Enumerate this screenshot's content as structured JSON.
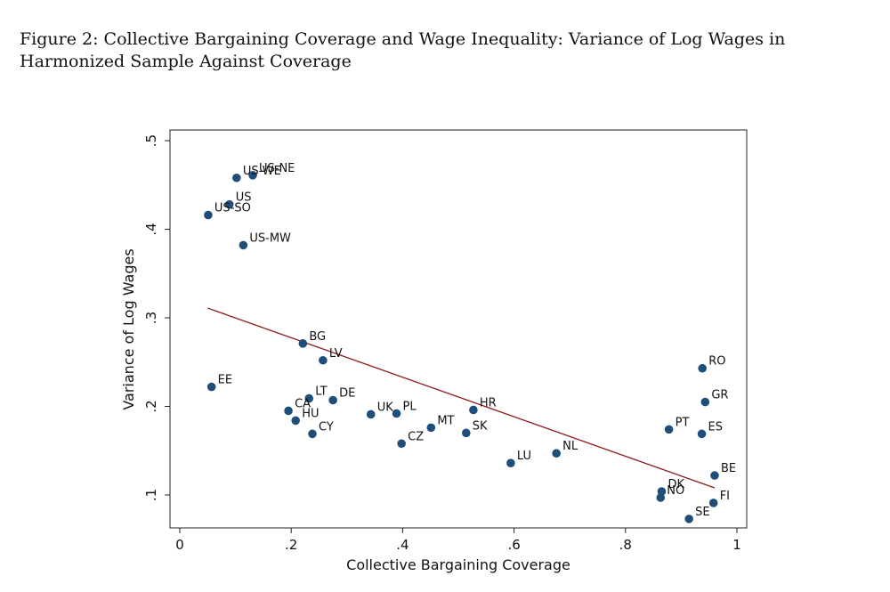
{
  "figure": {
    "caption": "Figure 2: Collective Bargaining Coverage and Wage Inequality: Variance of Log Wages in Harmonized Sample Against Coverage"
  },
  "chart_data": {
    "type": "scatter",
    "title": "Figure 2: Collective Bargaining Coverage and Wage Inequality: Variance of Log Wages in Harmonized Sample Against Coverage",
    "xlabel": "Collective Bargaining Coverage",
    "ylabel": "Variance of Log Wages",
    "xlim": [
      0,
      1
    ],
    "ylim": [
      0.07,
      0.51
    ],
    "xticks": [
      {
        "v": 0,
        "label": "0"
      },
      {
        "v": 0.2,
        "label": ".2"
      },
      {
        "v": 0.4,
        "label": ".4"
      },
      {
        "v": 0.6,
        "label": ".6"
      },
      {
        "v": 0.8,
        "label": ".8"
      },
      {
        "v": 1,
        "label": "1"
      }
    ],
    "yticks": [
      {
        "v": 0.1,
        "label": ".1"
      },
      {
        "v": 0.2,
        "label": ".2"
      },
      {
        "v": 0.3,
        "label": ".3"
      },
      {
        "v": 0.4,
        "label": ".4"
      },
      {
        "v": 0.5,
        "label": ".5"
      }
    ],
    "grid": false,
    "marker_color": "#1f4e79",
    "fit_color": "#8b1a1a",
    "fit_line": {
      "x": [
        0.05,
        0.96
      ],
      "y": [
        0.311,
        0.108
      ]
    },
    "points": [
      {
        "label": "US-NE",
        "x": 0.131,
        "y": 0.461
      },
      {
        "label": "US-WE",
        "x": 0.102,
        "y": 0.458
      },
      {
        "label": "US",
        "x": 0.089,
        "y": 0.428
      },
      {
        "label": "US-SO",
        "x": 0.051,
        "y": 0.416
      },
      {
        "label": "US-MW",
        "x": 0.114,
        "y": 0.382
      },
      {
        "label": "BG",
        "x": 0.221,
        "y": 0.271
      },
      {
        "label": "LV",
        "x": 0.257,
        "y": 0.252
      },
      {
        "label": "EE",
        "x": 0.057,
        "y": 0.222
      },
      {
        "label": "LT",
        "x": 0.232,
        "y": 0.209
      },
      {
        "label": "DE",
        "x": 0.275,
        "y": 0.207
      },
      {
        "label": "CA",
        "x": 0.195,
        "y": 0.195
      },
      {
        "label": "HU",
        "x": 0.208,
        "y": 0.184
      },
      {
        "label": "CY",
        "x": 0.238,
        "y": 0.169
      },
      {
        "label": "UK",
        "x": 0.343,
        "y": 0.191
      },
      {
        "label": "PL",
        "x": 0.389,
        "y": 0.192
      },
      {
        "label": "CZ",
        "x": 0.398,
        "y": 0.158
      },
      {
        "label": "MT",
        "x": 0.451,
        "y": 0.176
      },
      {
        "label": "SK",
        "x": 0.514,
        "y": 0.17
      },
      {
        "label": "HR",
        "x": 0.527,
        "y": 0.196
      },
      {
        "label": "LU",
        "x": 0.594,
        "y": 0.136
      },
      {
        "label": "NL",
        "x": 0.676,
        "y": 0.147
      },
      {
        "label": "RO",
        "x": 0.938,
        "y": 0.243
      },
      {
        "label": "GR",
        "x": 0.943,
        "y": 0.205
      },
      {
        "label": "PT",
        "x": 0.878,
        "y": 0.174
      },
      {
        "label": "ES",
        "x": 0.937,
        "y": 0.169
      },
      {
        "label": "BE",
        "x": 0.96,
        "y": 0.122
      },
      {
        "label": "DK",
        "x": 0.865,
        "y": 0.104
      },
      {
        "label": "NO",
        "x": 0.863,
        "y": 0.097
      },
      {
        "label": "FI",
        "x": 0.958,
        "y": 0.091
      },
      {
        "label": "SE",
        "x": 0.914,
        "y": 0.073
      }
    ]
  }
}
